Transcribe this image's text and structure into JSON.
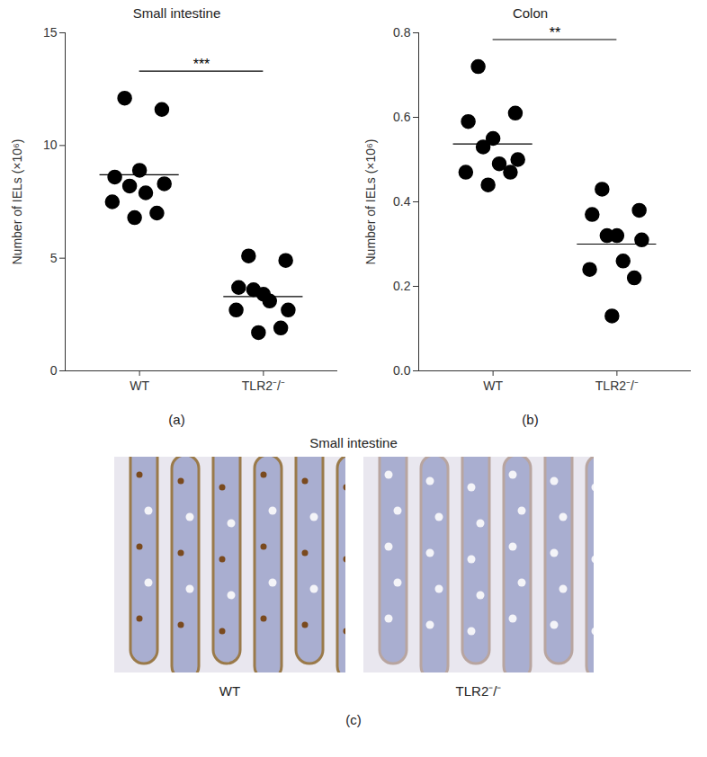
{
  "chart_data": [
    {
      "type": "scatter",
      "title": "Small intestine",
      "panel": "(a)",
      "ylabel": "Number of IELs (×10⁶)",
      "categories": [
        "WT",
        "TLR2⁻/⁻"
      ],
      "values": [
        [
          12.1,
          11.6,
          8.6,
          8.9,
          8.2,
          8.3,
          7.9,
          7.5,
          7.0,
          6.8
        ],
        [
          5.1,
          4.9,
          3.7,
          3.4,
          3.6,
          2.7,
          3.1,
          2.7,
          1.9,
          1.7
        ]
      ],
      "means": [
        8.7,
        3.3
      ],
      "significance": "***",
      "color": "#000000",
      "ylim": [
        0,
        15
      ],
      "yticks": [
        0,
        5,
        10,
        15
      ],
      "grid": false
    },
    {
      "type": "scatter",
      "title": "Colon",
      "panel": "(b)",
      "ylabel": "Number of IELs (×10⁶)",
      "categories": [
        "WT",
        "TLR2⁻/⁻"
      ],
      "values": [
        [
          0.72,
          0.61,
          0.59,
          0.55,
          0.53,
          0.5,
          0.49,
          0.47,
          0.47,
          0.44
        ],
        [
          0.43,
          0.38,
          0.37,
          0.32,
          0.32,
          0.31,
          0.26,
          0.24,
          0.22,
          0.13
        ]
      ],
      "means": [
        0.537,
        0.3
      ],
      "significance": "**",
      "color": "#000000",
      "ylim": [
        0,
        0.8
      ],
      "yticks": [
        {
          "value": 0,
          "label": "0.0"
        },
        0.2,
        0.4,
        0.6,
        0.8
      ],
      "grid": false
    }
  ],
  "images": {
    "title": "Small intestine",
    "panel": "(c)",
    "labels": [
      "WT",
      "TLR2⁻/⁻"
    ]
  }
}
